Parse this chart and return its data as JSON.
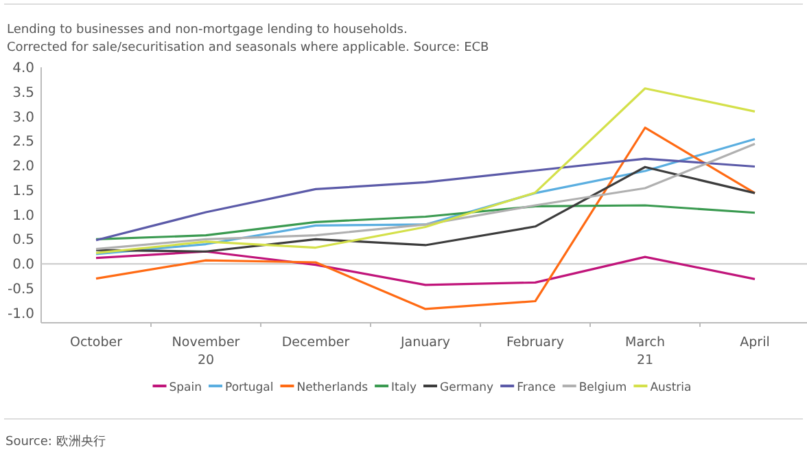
{
  "chart_data": {
    "type": "line",
    "title": "Lending to businesses and non-mortgage lending to households.",
    "subtitle": "Corrected for sale/securitisation and seasonals where applicable. Source: ECB",
    "categories": [
      "October",
      "November\n20",
      "December",
      "January",
      "February",
      "March\n21",
      "April"
    ],
    "ylim": [
      -1.2,
      4.0
    ],
    "yticks": [
      {
        "value": -1,
        "label": "-1.0"
      },
      {
        "value": -0.5,
        "label": "-0.5"
      },
      {
        "value": 0,
        "label": "0.0"
      },
      {
        "value": 0.5,
        "label": "0.5"
      },
      {
        "value": 1,
        "label": "1.0"
      },
      {
        "value": 1.5,
        "label": "1.5"
      },
      {
        "value": 2,
        "label": "2.0"
      },
      {
        "value": 2.5,
        "label": "2.5"
      },
      {
        "value": 3,
        "label": "3.0"
      },
      {
        "value": 3.5,
        "label": "3.5"
      },
      {
        "value": 4,
        "label": "4.0"
      }
    ],
    "ref_lines": [
      {
        "axis": "y",
        "value": 0,
        "color": "#c8c8c8"
      }
    ],
    "legend": "bottom",
    "grid": false,
    "marker": "none",
    "line_style": "solid",
    "series": [
      {
        "name": "Spain",
        "color": "#c0147a",
        "values": [
          0.12,
          0.25,
          -0.02,
          -0.43,
          -0.38,
          0.14,
          -0.31
        ]
      },
      {
        "name": "Portugal",
        "color": "#5aaee0",
        "values": [
          0.2,
          0.4,
          0.78,
          0.8,
          1.44,
          1.89,
          2.54
        ]
      },
      {
        "name": "Netherlands",
        "color": "#ff6a13",
        "values": [
          -0.3,
          0.07,
          0.03,
          -0.92,
          -0.76,
          2.77,
          1.44
        ]
      },
      {
        "name": "Italy",
        "color": "#3a9a50",
        "values": [
          0.5,
          0.58,
          0.85,
          0.96,
          1.17,
          1.19,
          1.04
        ]
      },
      {
        "name": "Germany",
        "color": "#3c3c3c",
        "values": [
          0.28,
          0.25,
          0.5,
          0.38,
          0.76,
          1.97,
          1.44
        ]
      },
      {
        "name": "France",
        "color": "#5b5aa8",
        "values": [
          0.48,
          1.05,
          1.52,
          1.66,
          1.9,
          2.14,
          1.98
        ]
      },
      {
        "name": "Belgium",
        "color": "#b0b0b0",
        "values": [
          0.3,
          0.5,
          0.58,
          0.8,
          1.19,
          1.54,
          2.44
        ]
      },
      {
        "name": "Austria",
        "color": "#d4e04a",
        "values": [
          0.22,
          0.45,
          0.33,
          0.75,
          1.45,
          3.57,
          3.1
        ]
      }
    ],
    "annotations": [
      "Source: 欧洲央行"
    ]
  }
}
